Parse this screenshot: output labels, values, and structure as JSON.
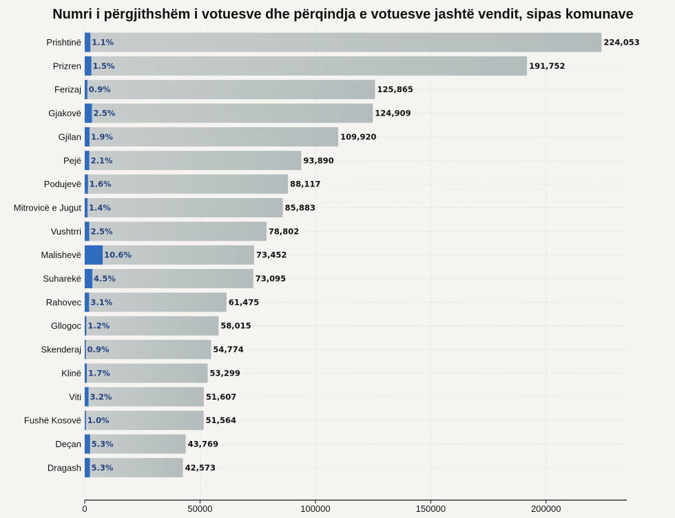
{
  "chart_data": {
    "type": "bar",
    "orientation": "horizontal",
    "title": "Numri i përgjithshëm i votuesve dhe përqindja e votuesve jashtë vendit, sipas komunave",
    "categories": [
      "Prishtinë",
      "Prizren",
      "Ferizaj",
      "Gjakovë",
      "Gjilan",
      "Pejë",
      "Podujevë",
      "Mitrovicë e Jugut",
      "Vushtrri",
      "Malishevë",
      "Suharekë",
      "Rahovec",
      "Gllogoc",
      "Skenderaj",
      "Klinë",
      "Viti",
      "Fushë Kosovë",
      "Deçan",
      "Dragash"
    ],
    "series": [
      {
        "values": [
          224053,
          191752,
          125865,
          124909,
          109920,
          93890,
          88117,
          85883,
          78802,
          73452,
          73095,
          61475,
          58015,
          54774,
          53299,
          51607,
          51564,
          43769,
          42573
        ],
        "value_labels": [
          "224,053",
          "191,752",
          "125,865",
          "124,909",
          "109,920",
          "93,890",
          "88,117",
          "85,883",
          "78,802",
          "73,452",
          "73,095",
          "61,475",
          "58,015",
          "54,774",
          "53,299",
          "51,607",
          "51,564",
          "43,769",
          "42,573"
        ],
        "color": "#bdc3c3"
      },
      {
        "values": [
          1.1,
          1.5,
          0.9,
          2.5,
          1.9,
          2.1,
          1.6,
          1.4,
          2.5,
          10.6,
          4.5,
          3.1,
          1.2,
          0.9,
          1.7,
          3.2,
          1.0,
          5.3,
          5.3
        ],
        "value_labels": [
          "1.1%",
          "1.5%",
          "0.9%",
          "2.5%",
          "1.9%",
          "2.1%",
          "1.6%",
          "1.4%",
          "2.5%",
          "10.6%",
          "4.5%",
          "3.1%",
          "1.2%",
          "0.9%",
          "1.7%",
          "3.2%",
          "1.0%",
          "5.3%",
          "5.3%"
        ],
        "unit": "%",
        "color": "#2f6bbf"
      }
    ],
    "xlim": [
      0,
      235000
    ],
    "xticks": [
      0,
      50000,
      100000,
      150000,
      200000
    ],
    "xtick_labels": [
      "0",
      "50000",
      "100000",
      "150000",
      "200000"
    ],
    "xlabel": "",
    "ylabel": "",
    "grid": true,
    "legend": "none"
  }
}
